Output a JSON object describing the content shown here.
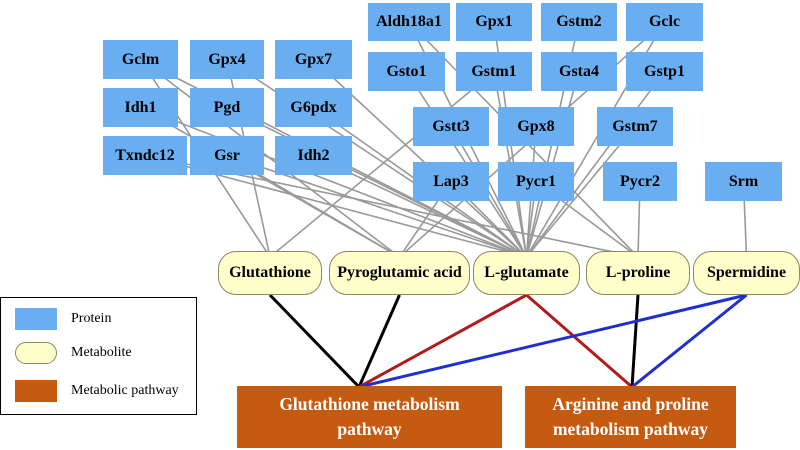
{
  "proteins": [
    {
      "id": "gclm",
      "label": "Gclm"
    },
    {
      "id": "gpx4",
      "label": "Gpx4"
    },
    {
      "id": "gpx7",
      "label": "Gpx7"
    },
    {
      "id": "aldh18a1",
      "label": "Aldh18a1"
    },
    {
      "id": "gpx1",
      "label": "Gpx1"
    },
    {
      "id": "gstm2",
      "label": "Gstm2"
    },
    {
      "id": "gclc",
      "label": "Gclc"
    },
    {
      "id": "gsto1",
      "label": "Gsto1"
    },
    {
      "id": "gstm1",
      "label": "Gstm1"
    },
    {
      "id": "gsta4",
      "label": "Gsta4"
    },
    {
      "id": "gstp1",
      "label": "Gstp1"
    },
    {
      "id": "idh1",
      "label": "Idh1"
    },
    {
      "id": "pgd",
      "label": "Pgd"
    },
    {
      "id": "g6pdx",
      "label": "G6pdx"
    },
    {
      "id": "gstt3",
      "label": "Gstt3"
    },
    {
      "id": "gpx8",
      "label": "Gpx8"
    },
    {
      "id": "gstm7",
      "label": "Gstm7"
    },
    {
      "id": "txndc12",
      "label": "Txndc12"
    },
    {
      "id": "gsr",
      "label": "Gsr"
    },
    {
      "id": "idh2",
      "label": "Idh2"
    },
    {
      "id": "lap3",
      "label": "Lap3"
    },
    {
      "id": "pycr1",
      "label": "Pycr1"
    },
    {
      "id": "pycr2",
      "label": "Pycr2"
    },
    {
      "id": "srm",
      "label": "Srm"
    }
  ],
  "metabolites": [
    {
      "id": "glutathione",
      "label": "Glutathione"
    },
    {
      "id": "pyroglutamic",
      "label": "Pyroglutamic acid"
    },
    {
      "id": "lglutamate",
      "label": "L-glutamate"
    },
    {
      "id": "lproline",
      "label": "L-proline"
    },
    {
      "id": "spermidine",
      "label": "Spermidine"
    }
  ],
  "pathways": [
    {
      "id": "glutathione_pathway",
      "line1": "Glutathione metabolism",
      "line2": "pathway"
    },
    {
      "id": "arginine_pathway",
      "line1": "Arginine and proline",
      "line2": "metabolism pathway"
    }
  ],
  "edges_protein_metabolite": [
    [
      "gclm",
      "lglutamate"
    ],
    [
      "gpx4",
      "lglutamate"
    ],
    [
      "gpx7",
      "lglutamate"
    ],
    [
      "idh1",
      "lglutamate"
    ],
    [
      "pgd",
      "lglutamate"
    ],
    [
      "g6pdx",
      "lglutamate"
    ],
    [
      "txndc12",
      "lglutamate"
    ],
    [
      "gsr",
      "lglutamate"
    ],
    [
      "idh2",
      "lglutamate"
    ],
    [
      "aldh18a1",
      "lglutamate"
    ],
    [
      "gpx1",
      "lglutamate"
    ],
    [
      "gstm2",
      "lglutamate"
    ],
    [
      "gclc",
      "lglutamate"
    ],
    [
      "gsto1",
      "lglutamate"
    ],
    [
      "gstm1",
      "lglutamate"
    ],
    [
      "gsta4",
      "lglutamate"
    ],
    [
      "gstp1",
      "lglutamate"
    ],
    [
      "gstt3",
      "lglutamate"
    ],
    [
      "gpx8",
      "lglutamate"
    ],
    [
      "gstm7",
      "lglutamate"
    ],
    [
      "lap3",
      "lglutamate"
    ],
    [
      "pycr1",
      "lglutamate"
    ],
    [
      "gclm",
      "glutathione"
    ],
    [
      "gclm",
      "pyroglutamic"
    ],
    [
      "gpx4",
      "glutathione"
    ],
    [
      "idh1",
      "pyroglutamic"
    ],
    [
      "txndc12",
      "lproline"
    ],
    [
      "gsr",
      "pyroglutamic"
    ],
    [
      "aldh18a1",
      "lproline"
    ],
    [
      "gclc",
      "pyroglutamic"
    ],
    [
      "gstm1",
      "glutathione"
    ],
    [
      "lap3",
      "pyroglutamic"
    ],
    [
      "pycr1",
      "lproline"
    ],
    [
      "pycr2",
      "lproline"
    ],
    [
      "srm",
      "spermidine"
    ]
  ],
  "edges_pathway": [
    {
      "from": "glutathione",
      "to": "glutathione_pathway",
      "color": "#000000"
    },
    {
      "from": "pyroglutamic",
      "to": "glutathione_pathway",
      "color": "#000000"
    },
    {
      "from": "lglutamate",
      "to": "glutathione_pathway",
      "color": "#b01c1c"
    },
    {
      "from": "lglutamate",
      "to": "arginine_pathway",
      "color": "#b01c1c"
    },
    {
      "from": "lproline",
      "to": "arginine_pathway",
      "color": "#000000"
    },
    {
      "from": "spermidine",
      "to": "glutathione_pathway",
      "color": "#1f2fd0"
    },
    {
      "from": "spermidine",
      "to": "arginine_pathway",
      "color": "#1f2fd0"
    }
  ],
  "legend": [
    {
      "kind": "protein",
      "label": "Protein"
    },
    {
      "kind": "metabolite",
      "label": "Metabolite"
    },
    {
      "kind": "pathway",
      "label": "Metabolic pathway"
    }
  ],
  "colors": {
    "protein": "#6aaef2",
    "metabolite": "#ffffcc",
    "pathway": "#c55a11",
    "edge": "#999999"
  }
}
